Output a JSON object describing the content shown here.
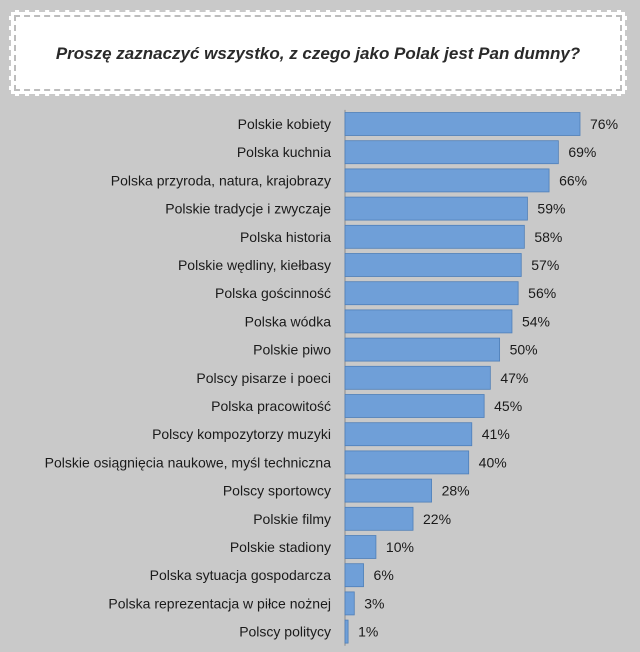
{
  "title": "Proszę zaznaczyć wszystko, z czego jako Polak jest Pan dumny?",
  "colors": {
    "background": "#c9c9c9",
    "bar": "#6f9fd8",
    "bar_edge": "#4f7fb8"
  },
  "chart_data": {
    "type": "bar",
    "orientation": "horizontal",
    "title": "Proszę zaznaczyć wszystko, z czego jako Polak jest Pan dumny?",
    "categories": [
      "Polskie kobiety",
      "Polska kuchnia",
      "Polska przyroda, natura, krajobrazy",
      "Polskie tradycje i zwyczaje",
      "Polska historia",
      "Polskie wędliny, kiełbasy",
      "Polska gościnność",
      "Polska wódka",
      "Polskie piwo",
      "Polscy pisarze i poeci",
      "Polska pracowitość",
      "Polscy kompozytorzy muzyki",
      "Polskie osiągnięcia naukowe, myśl techniczna",
      "Polscy sportowcy",
      "Polskie filmy",
      "Polskie stadiony",
      "Polska sytuacja gospodarcza",
      "Polska reprezentacja w piłce nożnej",
      "Polscy politycy"
    ],
    "values": [
      76,
      69,
      66,
      59,
      58,
      57,
      56,
      54,
      50,
      47,
      45,
      41,
      40,
      28,
      22,
      10,
      6,
      3,
      1
    ],
    "value_labels": [
      "76%",
      "69%",
      "66%",
      "59%",
      "58%",
      "57%",
      "56%",
      "54%",
      "50%",
      "47%",
      "45%",
      "41%",
      "40%",
      "28%",
      "22%",
      "10%",
      "6%",
      "3%",
      "1%"
    ],
    "unit": "%",
    "xlabel": "",
    "ylabel": "",
    "xlim": [
      0,
      76
    ],
    "grid": false,
    "legend": "none"
  }
}
